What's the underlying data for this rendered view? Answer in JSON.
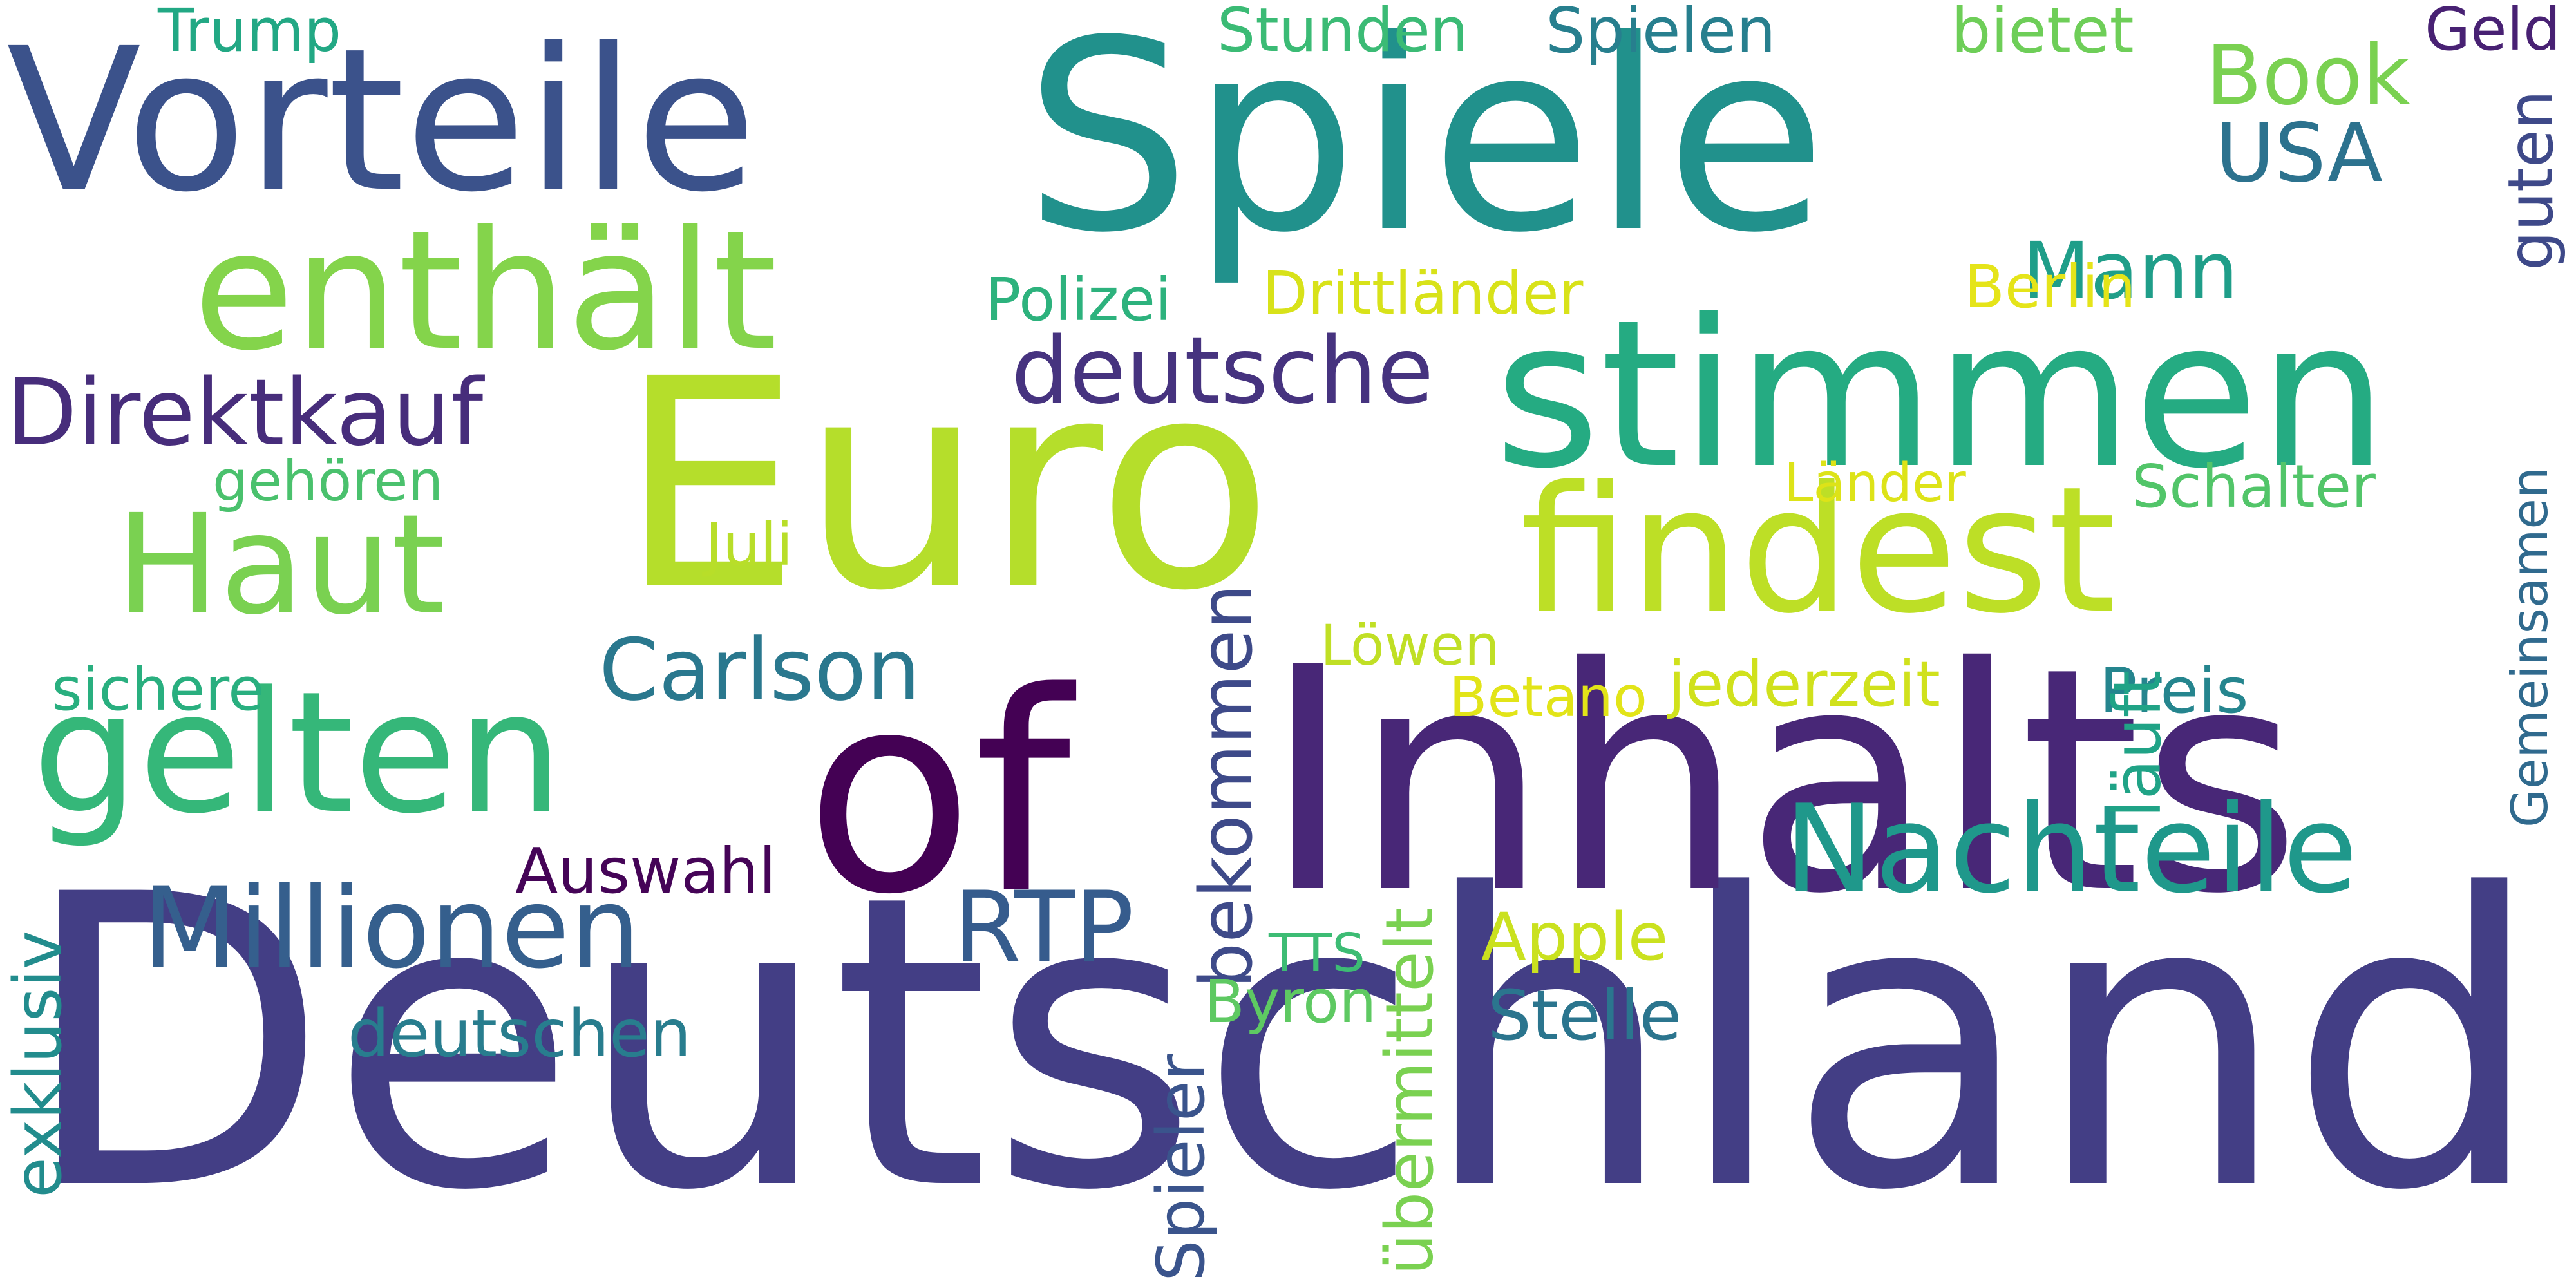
{
  "words": [
    {
      "text": "Deutschland",
      "color": "#433e85",
      "rotate": false
    },
    {
      "text": "Euro",
      "color": "#b5de2b",
      "rotate": false
    },
    {
      "text": "Spiele",
      "color": "#21918c",
      "rotate": false
    },
    {
      "text": "Inhalts",
      "color": "#482777",
      "rotate": false
    },
    {
      "text": "of",
      "color": "#440154",
      "rotate": false
    },
    {
      "text": "Vorteile",
      "color": "#3b528b",
      "rotate": false
    },
    {
      "text": "stimmen",
      "color": "#25ab82",
      "rotate": false
    },
    {
      "text": "findest",
      "color": "#bddf26",
      "rotate": false
    },
    {
      "text": "enthält",
      "color": "#84d44b",
      "rotate": false
    },
    {
      "text": "gelten",
      "color": "#35b779",
      "rotate": false
    },
    {
      "text": "Haut",
      "color": "#7ad151",
      "rotate": false
    },
    {
      "text": "Nachteile",
      "color": "#1f988b",
      "rotate": false
    },
    {
      "text": "Millionen",
      "color": "#355f8d",
      "rotate": false
    },
    {
      "text": "Direktkauf",
      "color": "#472d7b",
      "rotate": false
    },
    {
      "text": "deutsche",
      "color": "#46337f",
      "rotate": false
    },
    {
      "text": "Carlson",
      "color": "#2a788e",
      "rotate": false
    },
    {
      "text": "RTP",
      "color": "#365c8d",
      "rotate": false
    },
    {
      "text": "bekommen",
      "color": "#3e4a89",
      "rotate": true
    },
    {
      "text": "Book",
      "color": "#7ad151",
      "rotate": false
    },
    {
      "text": "USA",
      "color": "#2c728e",
      "rotate": false
    },
    {
      "text": "Mann",
      "color": "#1f9e89",
      "rotate": false
    },
    {
      "text": "deutschen",
      "color": "#287d8e",
      "rotate": false
    },
    {
      "text": "Trump",
      "color": "#22a884",
      "rotate": false
    },
    {
      "text": "Stunden",
      "color": "#3bbb75",
      "rotate": false
    },
    {
      "text": "Spielen",
      "color": "#277f8e",
      "rotate": false
    },
    {
      "text": "bietet",
      "color": "#6ece58",
      "rotate": false
    },
    {
      "text": "Geld",
      "color": "#482173",
      "rotate": false
    },
    {
      "text": "guten",
      "color": "#3e4989",
      "rotate": true
    },
    {
      "text": "Polizei",
      "color": "#2db27d",
      "rotate": false
    },
    {
      "text": "Drittländer",
      "color": "#d8e219",
      "rotate": false
    },
    {
      "text": "Berlin",
      "color": "#e5e419",
      "rotate": false
    },
    {
      "text": "gehören",
      "color": "#4ac16d",
      "rotate": false
    },
    {
      "text": "Länder",
      "color": "#dde318",
      "rotate": false
    },
    {
      "text": "Schalter",
      "color": "#52c569",
      "rotate": false
    },
    {
      "text": "Gemeinsamen",
      "color": "#306a8e",
      "rotate": true
    },
    {
      "text": "Juli",
      "color": "#b8de29",
      "rotate": false
    },
    {
      "text": "Löwen",
      "color": "#c0df25",
      "rotate": false
    },
    {
      "text": "Betano",
      "color": "#e2e418",
      "rotate": false
    },
    {
      "text": "jederzeit",
      "color": "#d0e11c",
      "rotate": false
    },
    {
      "text": "sichere",
      "color": "#29af7f",
      "rotate": false
    },
    {
      "text": "Preis",
      "color": "#25858e",
      "rotate": false
    },
    {
      "text": "läuft",
      "color": "#20a386",
      "rotate": true
    },
    {
      "text": "Auswahl",
      "color": "#450457",
      "rotate": false
    },
    {
      "text": "übermittelt",
      "color": "#7ad151",
      "rotate": true
    },
    {
      "text": "Apple",
      "color": "#cae11f",
      "rotate": false
    },
    {
      "text": "TTS",
      "color": "#3dbc74",
      "rotate": false
    },
    {
      "text": "Byron",
      "color": "#5ec962",
      "rotate": false
    },
    {
      "text": "Stelle",
      "color": "#2b758e",
      "rotate": false
    },
    {
      "text": "exklusiv",
      "color": "#228c8d",
      "rotate": true
    },
    {
      "text": "Spieler",
      "color": "#3a548c",
      "rotate": true
    }
  ]
}
